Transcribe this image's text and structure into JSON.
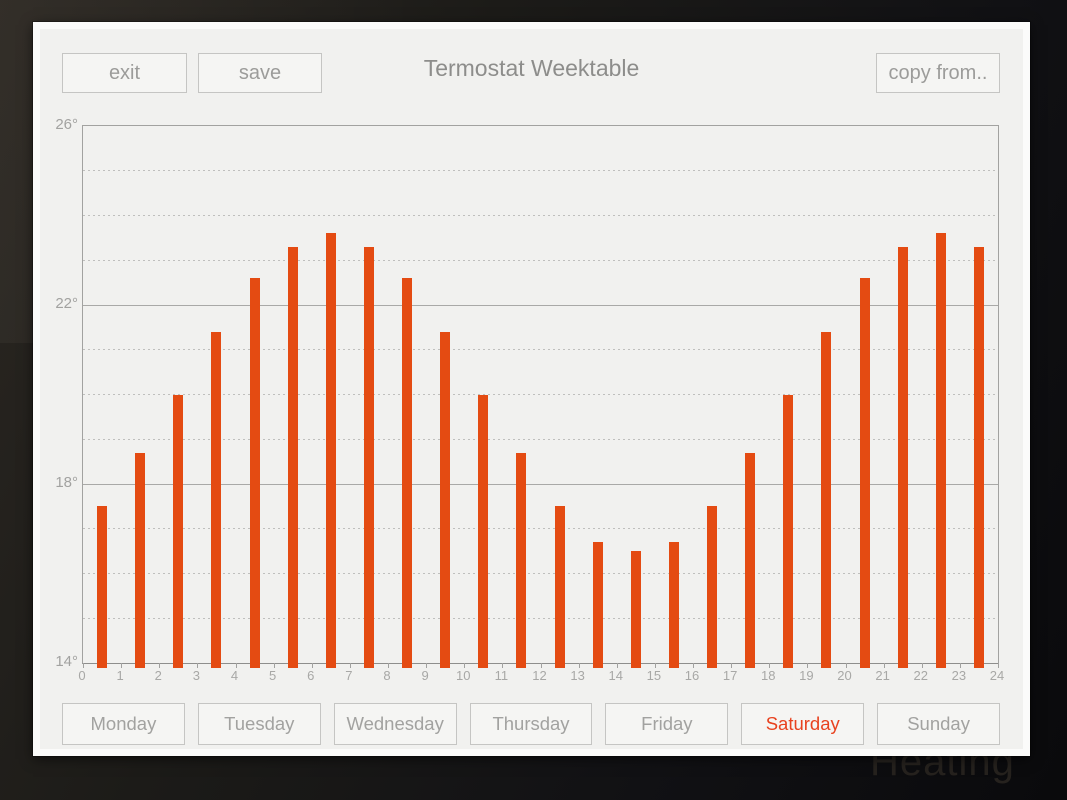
{
  "background": {
    "watermark": "Heating"
  },
  "dialog": {
    "title": "Termostat Weektable",
    "exit_label": "exit",
    "save_label": "save",
    "copy_from_label": "copy from.."
  },
  "chart_data": {
    "type": "bar",
    "title": "Termostat Weektable",
    "x_hours": [
      0,
      1,
      2,
      3,
      4,
      5,
      6,
      7,
      8,
      9,
      10,
      11,
      12,
      13,
      14,
      15,
      16,
      17,
      18,
      19,
      20,
      21,
      22,
      23
    ],
    "values": [
      17.5,
      18.7,
      20.0,
      21.4,
      22.6,
      23.3,
      23.6,
      23.3,
      22.6,
      21.4,
      20.0,
      18.7,
      17.5,
      16.7,
      16.5,
      16.7,
      17.5,
      18.7,
      20.0,
      21.4,
      22.6,
      23.3,
      23.6,
      23.3
    ],
    "value_unit": "°",
    "ylim": [
      14,
      26
    ],
    "ytick_values": [
      14,
      18,
      22,
      26
    ],
    "ytick_labels": [
      "14°",
      "18°",
      "22°",
      "26°"
    ],
    "xtick_labels": [
      "0",
      "1",
      "2",
      "3",
      "4",
      "5",
      "6",
      "7",
      "8",
      "9",
      "10",
      "11",
      "12",
      "13",
      "14",
      "15",
      "16",
      "17",
      "18",
      "19",
      "20",
      "21",
      "22",
      "23",
      "24"
    ],
    "grid": "minor dashed line every 1 degree, solid lines at 18 and 22, solid frame at 14 and 26",
    "legend": "none",
    "bar_color": "#e44b12"
  },
  "days": {
    "selected": "Saturday",
    "items": [
      {
        "label": "Monday",
        "selected": false
      },
      {
        "label": "Tuesday",
        "selected": false
      },
      {
        "label": "Wednesday",
        "selected": false
      },
      {
        "label": "Thursday",
        "selected": false
      },
      {
        "label": "Friday",
        "selected": false
      },
      {
        "label": "Saturday",
        "selected": true
      },
      {
        "label": "Sunday",
        "selected": false
      }
    ]
  },
  "colors": {
    "bar": "#e44b12",
    "selected_day_text": "#e8421f"
  }
}
